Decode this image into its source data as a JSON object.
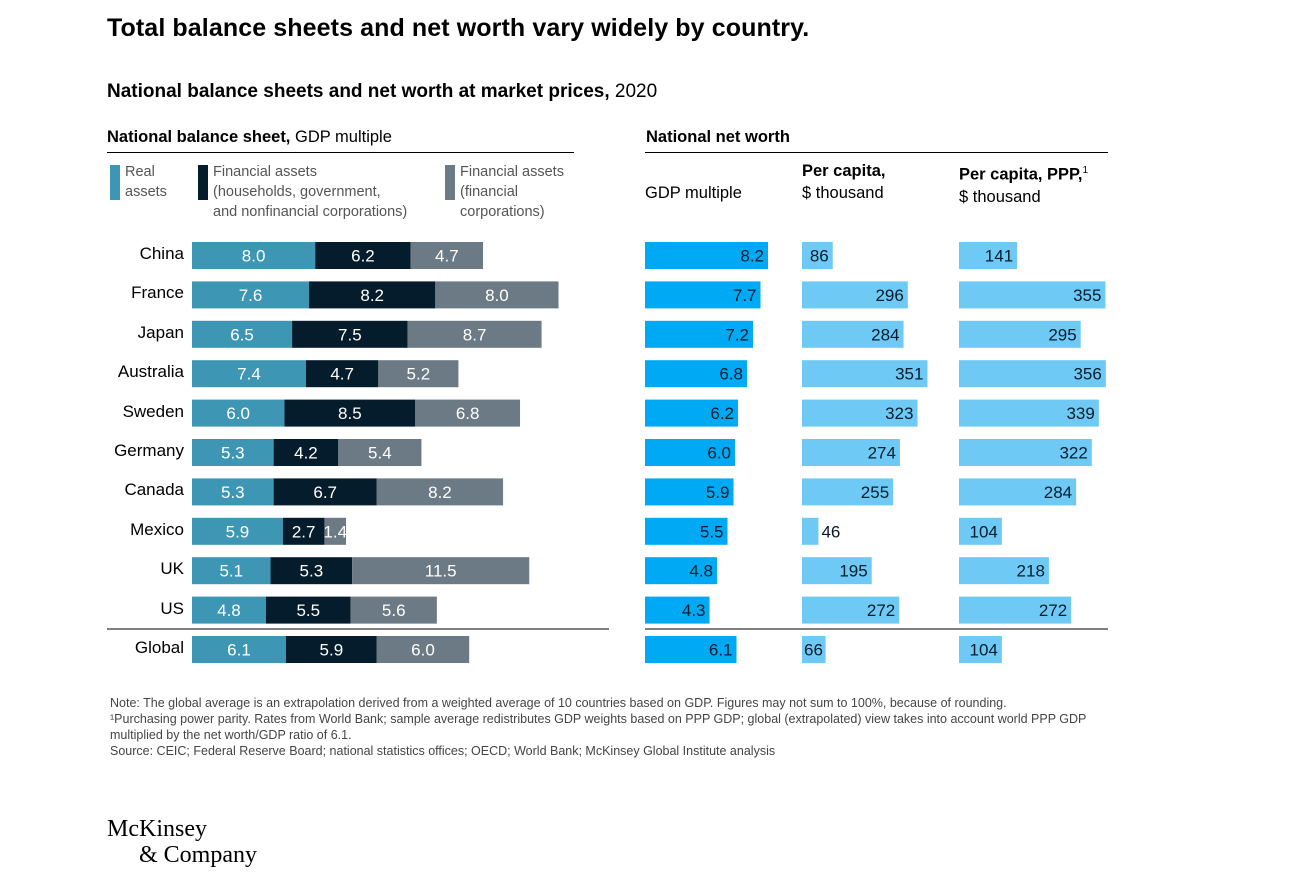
{
  "headline": "Total balance sheets and net worth vary widely by country.",
  "subtitle": {
    "bold": "National balance sheets and net worth at market prices,",
    "rest": " 2020"
  },
  "left_title": {
    "bold": "National balance sheet,",
    "rest": " GDP multiple"
  },
  "right_title": "National net worth",
  "legend": {
    "real": [
      "Real",
      "assets"
    ],
    "fin_hh": [
      "Financial assets",
      "(households, government,",
      "and nonfinancial corporations)"
    ],
    "fin_corp": [
      "Financial assets",
      "(financial",
      "corporations)"
    ]
  },
  "columns": {
    "gdp": {
      "line1": "",
      "line2": "GDP multiple"
    },
    "percap": {
      "line1": "Per capita,",
      "line2": "$ thousand"
    },
    "ppp": {
      "line1": "Per capita, PPP,",
      "sup": "1",
      "line2": "$ thousand"
    }
  },
  "colors": {
    "real": "#3c96b4",
    "fin_hh": "#051c2c",
    "fin_corp": "#6b7a84",
    "gdp": "#00a9f4",
    "percap": "#6ecaf5",
    "ppp": "#6ecaf5"
  },
  "chart_data": [
    {
      "type": "bar",
      "stacked": true,
      "orientation": "horizontal",
      "title": "National balance sheet, GDP multiple",
      "categories": [
        "China",
        "France",
        "Japan",
        "Australia",
        "Sweden",
        "Germany",
        "Canada",
        "Mexico",
        "UK",
        "US",
        "Global"
      ],
      "series": [
        {
          "name": "Real assets",
          "values": [
            8.0,
            7.6,
            6.5,
            7.4,
            6.0,
            5.3,
            5.3,
            5.9,
            5.1,
            4.8,
            6.1
          ]
        },
        {
          "name": "Financial assets (households, government, and nonfinancial corporations)",
          "values": [
            6.2,
            8.2,
            7.5,
            4.7,
            8.5,
            4.2,
            6.7,
            2.7,
            5.3,
            5.5,
            5.9
          ]
        },
        {
          "name": "Financial assets (financial corporations)",
          "values": [
            4.7,
            8.0,
            8.7,
            5.2,
            6.8,
            5.4,
            8.2,
            1.4,
            11.5,
            5.6,
            6.0
          ]
        }
      ]
    },
    {
      "type": "bar",
      "orientation": "horizontal",
      "title": "National net worth — GDP multiple",
      "categories": [
        "China",
        "France",
        "Japan",
        "Australia",
        "Sweden",
        "Germany",
        "Canada",
        "Mexico",
        "UK",
        "US",
        "Global"
      ],
      "values": [
        8.2,
        7.7,
        7.2,
        6.8,
        6.2,
        6.0,
        5.9,
        5.5,
        4.8,
        4.3,
        6.1
      ]
    },
    {
      "type": "bar",
      "orientation": "horizontal",
      "title": "National net worth — Per capita, $ thousand",
      "categories": [
        "China",
        "France",
        "Japan",
        "Australia",
        "Sweden",
        "Germany",
        "Canada",
        "Mexico",
        "UK",
        "US",
        "Global"
      ],
      "values": [
        86,
        296,
        284,
        351,
        323,
        274,
        255,
        46,
        195,
        272,
        66
      ]
    },
    {
      "type": "bar",
      "orientation": "horizontal",
      "title": "National net worth — Per capita, PPP, $ thousand",
      "categories": [
        "China",
        "France",
        "Japan",
        "Australia",
        "Sweden",
        "Germany",
        "Canada",
        "Mexico",
        "UK",
        "US",
        "Global"
      ],
      "values": [
        141,
        355,
        295,
        356,
        339,
        322,
        284,
        104,
        218,
        272,
        104
      ]
    }
  ],
  "notes": [
    "Note: The global average is an extrapolation derived from a weighted average of 10 countries based on GDP. Figures may not sum to 100%, because of rounding.",
    "¹Purchasing power parity. Rates from World Bank; sample average redistributes GDP weights based on PPP GDP; global (extrapolated) view takes into account world PPP GDP multiplied by the net worth/GDP ratio of 6.1.",
    "Source: CEIC; Federal Reserve Board; national statistics offices; OECD; World Bank; McKinsey Global Institute analysis"
  ],
  "logo": {
    "line1": "McKinsey",
    "line2": "& Company"
  }
}
